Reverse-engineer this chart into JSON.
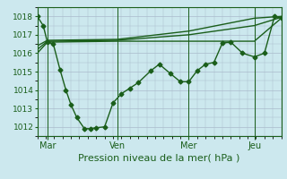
{
  "title": "Pression niveau de la mer( hPa )",
  "bg_color": "#cce8ee",
  "grid_color": "#aabbcc",
  "line_color": "#1a5e1a",
  "ylim": [
    1011.5,
    1018.5
  ],
  "yticks": [
    1012,
    1013,
    1014,
    1015,
    1016,
    1017,
    1018
  ],
  "ylabel_fontsize": 6.5,
  "xlabel_fontsize": 8,
  "xtick_labels": [
    "Mar",
    "Ven",
    "Mer",
    "Jeu"
  ],
  "xtick_positions": [
    12,
    95,
    180,
    258
  ],
  "xlim": [
    0,
    290
  ],
  "series1_x": [
    0,
    7,
    12,
    19,
    27,
    34,
    40,
    47,
    56,
    63,
    70,
    80,
    90,
    100,
    110,
    120,
    135,
    145,
    158,
    170,
    180,
    190,
    200,
    210,
    220,
    230,
    244,
    258,
    270,
    282,
    290
  ],
  "series1_y": [
    1018.0,
    1017.5,
    1016.6,
    1016.5,
    1015.1,
    1014.0,
    1013.2,
    1012.5,
    1011.9,
    1011.9,
    1011.95,
    1012.0,
    1013.3,
    1013.8,
    1014.1,
    1014.4,
    1015.05,
    1015.4,
    1014.9,
    1014.45,
    1014.45,
    1015.05,
    1015.4,
    1015.5,
    1016.55,
    1016.6,
    1016.0,
    1015.8,
    1016.0,
    1018.0,
    1017.9
  ],
  "series2_x": [
    0,
    12,
    95,
    180,
    258,
    290
  ],
  "series2_y": [
    1016.0,
    1016.6,
    1016.65,
    1016.65,
    1016.65,
    1017.9
  ],
  "series3_x": [
    0,
    12,
    95,
    180,
    258,
    290
  ],
  "series3_y": [
    1016.2,
    1016.65,
    1016.7,
    1017.0,
    1017.5,
    1017.95
  ],
  "series4_x": [
    0,
    12,
    95,
    180,
    258,
    290
  ],
  "series4_y": [
    1016.4,
    1016.7,
    1016.75,
    1017.2,
    1017.9,
    1018.0
  ]
}
